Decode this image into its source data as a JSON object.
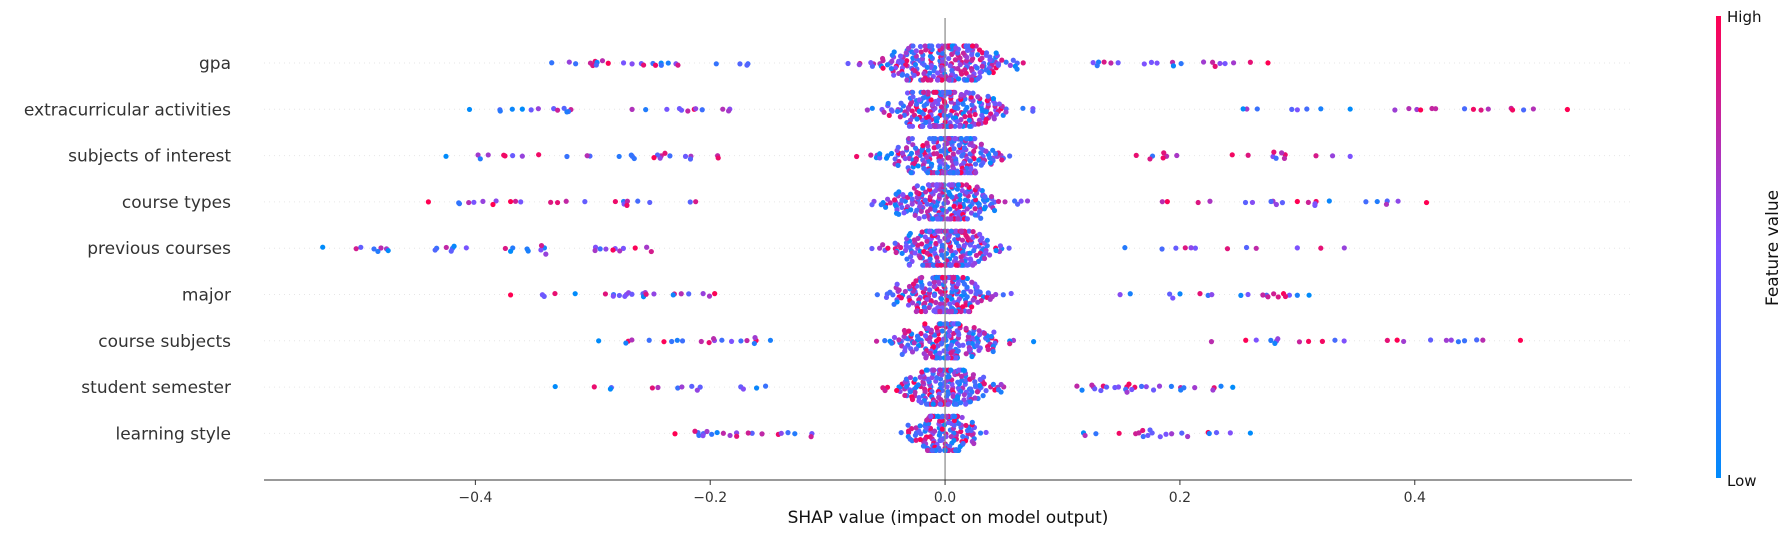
{
  "chart_data": {
    "type": "scatter",
    "subtype": "shap-beeswarm",
    "title": "",
    "xlabel": "SHAP value (impact on model output)",
    "x_ticks": [
      "−0.4",
      "−0.2",
      "0.0",
      "0.2",
      "0.4"
    ],
    "x_tick_values": [
      -0.4,
      -0.2,
      0.0,
      0.2,
      0.4
    ],
    "xlim": [
      -0.58,
      0.585
    ],
    "zero_line": true,
    "colorbar": {
      "label": "Feature value",
      "high_label": "High",
      "low_label": "Low",
      "low_color": "#008bfb",
      "high_color": "#ff0052"
    },
    "features": [
      {
        "name": "gpa",
        "min": -0.335,
        "max": 0.275,
        "core_spread": 0.22,
        "density": 260,
        "outliers": [
          [
            -0.335,
            0.2
          ],
          [
            -0.32,
            0.6
          ],
          [
            0.23,
            0.9
          ],
          [
            0.26,
            0.9
          ],
          [
            0.275,
            1.0
          ]
        ]
      },
      {
        "name": "extracurricular activities",
        "min": -0.405,
        "max": 0.53,
        "core_spread": 0.2,
        "density": 240,
        "outliers": [
          [
            -0.405,
            0.0
          ],
          [
            -0.36,
            0.0
          ],
          [
            -0.33,
            0.8
          ],
          [
            0.3,
            0.5
          ],
          [
            0.32,
            0.1
          ],
          [
            0.345,
            0.0
          ],
          [
            0.405,
            1.0
          ],
          [
            0.53,
            1.0
          ]
        ]
      },
      {
        "name": "subjects of interest",
        "min": -0.425,
        "max": 0.345,
        "core_spread": 0.2,
        "density": 240,
        "outliers": [
          [
            -0.425,
            0.0
          ],
          [
            -0.36,
            0.6
          ],
          [
            0.28,
            0.9
          ],
          [
            0.33,
            0.6
          ],
          [
            0.345,
            0.5
          ]
        ]
      },
      {
        "name": "course types",
        "min": -0.44,
        "max": 0.41,
        "core_spread": 0.18,
        "density": 220,
        "outliers": [
          [
            -0.44,
            1.0
          ],
          [
            -0.385,
            1.0
          ],
          [
            -0.37,
            1.0
          ],
          [
            -0.33,
            0.9
          ],
          [
            0.3,
            1.0
          ],
          [
            0.41,
            1.0
          ]
        ]
      },
      {
        "name": "previous courses",
        "min": -0.53,
        "max": 0.34,
        "core_spread": 0.18,
        "density": 220,
        "outliers": [
          [
            -0.53,
            0.0
          ],
          [
            -0.37,
            0.0
          ],
          [
            -0.355,
            0.1
          ],
          [
            -0.34,
            0.6
          ],
          [
            0.3,
            0.5
          ],
          [
            0.32,
            0.9
          ],
          [
            0.34,
            0.6
          ]
        ]
      },
      {
        "name": "major",
        "min": -0.37,
        "max": 0.31,
        "core_spread": 0.17,
        "density": 210,
        "outliers": [
          [
            -0.37,
            1.0
          ],
          [
            -0.315,
            0.0
          ],
          [
            0.275,
            0.8
          ],
          [
            0.3,
            0.1
          ],
          [
            0.31,
            0.0
          ]
        ]
      },
      {
        "name": "course subjects",
        "min": -0.295,
        "max": 0.49,
        "core_spread": 0.17,
        "density": 200,
        "outliers": [
          [
            -0.295,
            0.0
          ],
          [
            0.265,
            0.5
          ],
          [
            0.385,
            1.0
          ],
          [
            0.49,
            1.0
          ]
        ]
      },
      {
        "name": "student semester",
        "min": -0.332,
        "max": 0.245,
        "core_spread": 0.16,
        "density": 190,
        "outliers": [
          [
            -0.332,
            0.0
          ],
          [
            -0.285,
            0.0
          ],
          [
            0.235,
            0.1
          ],
          [
            0.245,
            0.0
          ]
        ]
      },
      {
        "name": "learning style",
        "min": -0.23,
        "max": 0.26,
        "core_spread": 0.12,
        "density": 170,
        "outliers": [
          [
            -0.23,
            1.0
          ],
          [
            0.225,
            0.1
          ],
          [
            0.26,
            0.0
          ]
        ]
      }
    ]
  }
}
